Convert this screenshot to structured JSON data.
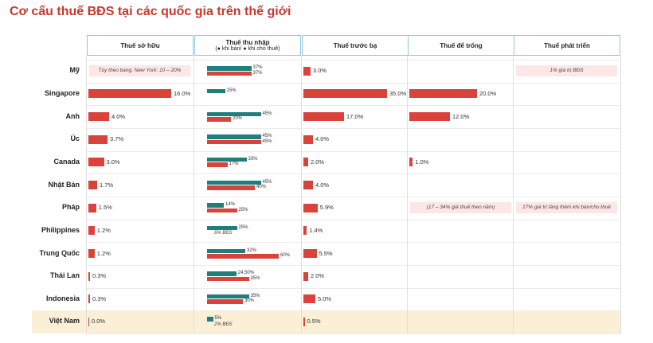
{
  "title": "Cơ cấu thuế BĐS tại các quốc gia trên thế giới",
  "headers": [
    "Thuế sở hữu",
    "Thuế thu nhập",
    "Thuế trước bạ",
    "Thuế để trống",
    "Thuế phát triển"
  ],
  "income_legend": "(● khi bán/ ● khi cho thuê)",
  "countries": [
    "Mỹ",
    "Singapore",
    "Anh",
    "Úc",
    "Canada",
    "Nhật Bản",
    "Pháp",
    "Philippines",
    "Trung Quốc",
    "Thái Lan",
    "Indonesia",
    "Việt Nam"
  ],
  "ownership": {
    "color": "#d9433b",
    "values": [
      null,
      16.0,
      4.0,
      3.7,
      3.0,
      1.7,
      1.5,
      1.2,
      1.2,
      0.3,
      0.3,
      0.0
    ],
    "value_labels": [
      null,
      "16.0%",
      "4.0%",
      "3.7%",
      "3.0%",
      "1.7%",
      "1.5%",
      "1.2%",
      "1.2%",
      "0.3%",
      "0.3%",
      "0.0%"
    ],
    "notes": [
      "Tùy theo bang, New York: 10 – 20%",
      null,
      null,
      null,
      null,
      null,
      null,
      null,
      null,
      null,
      null,
      null
    ]
  },
  "income": {
    "series": [
      {
        "color": "#1e7f7c",
        "values": [
          37,
          15,
          45,
          45,
          33,
          45,
          14,
          25,
          32,
          24.5,
          35,
          5
        ],
        "value_labels": [
          "37%",
          "15%",
          "45%",
          "45%",
          "33%",
          "45%",
          "14%",
          "25%",
          "32%",
          "24.50%",
          "35%",
          "5%"
        ]
      },
      {
        "color": "#d9433b",
        "values": [
          37,
          null,
          20,
          45,
          17,
          40,
          25,
          null,
          60,
          35,
          30,
          null
        ],
        "value_labels": [
          "37%",
          null,
          "20%",
          "45%",
          "17%",
          "40%",
          "25%",
          null,
          "60%",
          "35%",
          "30%",
          null
        ]
      }
    ],
    "notes": [
      null,
      null,
      null,
      null,
      null,
      null,
      null,
      "6% BĐS",
      null,
      null,
      null,
      "2% BĐS"
    ]
  },
  "registration": {
    "color": "#d9433b",
    "values": [
      3.0,
      35.0,
      17.0,
      4.0,
      2.0,
      4.0,
      5.9,
      1.4,
      5.5,
      2.0,
      5.0,
      0.5
    ],
    "value_labels": [
      "3.0%",
      "35.0%",
      "17.0%",
      "4.0%",
      "2.0%",
      "4.0%",
      "5.9%",
      "1.4%",
      "5.5%",
      "2.0%",
      "5.0%",
      "0.5%"
    ]
  },
  "vacancy": {
    "color": "#d9433b",
    "values": [
      null,
      20.0,
      12.0,
      null,
      1.0,
      null,
      null,
      null,
      null,
      null,
      null,
      null
    ],
    "value_labels": [
      null,
      "20.0%",
      "12.0%",
      null,
      "1.0%",
      null,
      null,
      null,
      null,
      null,
      null,
      null
    ],
    "notes": [
      null,
      null,
      null,
      null,
      null,
      null,
      "(17 – 34% giá thuế theo năm)",
      null,
      null,
      null,
      null,
      null
    ]
  },
  "development": {
    "notes": [
      "1% giá trị BĐS",
      null,
      null,
      null,
      null,
      null,
      "17% giá trị tăng thêm khi bán/cho thuê",
      null,
      null,
      null,
      null,
      null
    ]
  }
}
